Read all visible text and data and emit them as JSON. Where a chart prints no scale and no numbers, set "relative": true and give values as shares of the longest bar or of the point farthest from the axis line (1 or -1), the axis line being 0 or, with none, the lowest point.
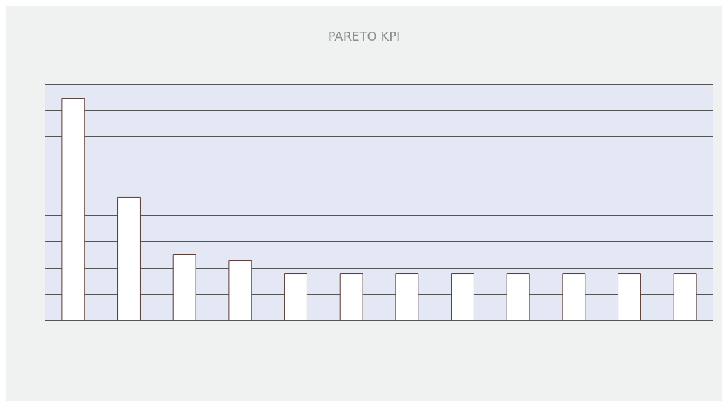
{
  "chart_data": {
    "type": "bar",
    "title": "PARETO KPI",
    "relative": true,
    "grid": "y",
    "categories": [
      null,
      null,
      null,
      null,
      null,
      null,
      null,
      null,
      null,
      null,
      null,
      null
    ],
    "values": [
      1,
      0.556,
      0.298,
      0.27,
      0.211,
      0.211,
      0.211,
      0.211,
      0.211,
      0.211,
      0.211,
      0.211
    ],
    "color": "#ffffff"
  }
}
